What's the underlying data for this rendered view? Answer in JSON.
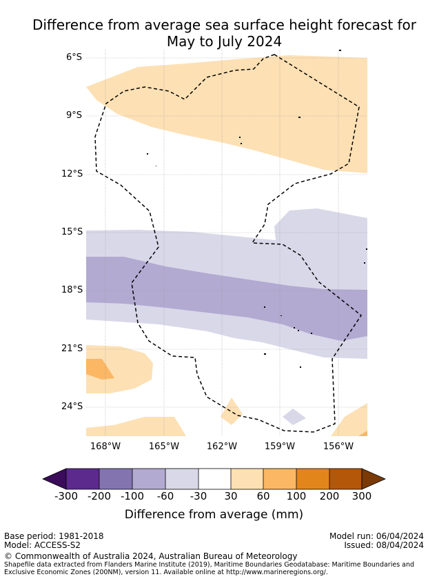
{
  "title_line1": "Difference from average sea surface height forecast for",
  "title_line2": "May to July 2024",
  "y_ticks": [
    "6°S",
    "9°S",
    "12°S",
    "15°S",
    "18°S",
    "21°S",
    "24°S"
  ],
  "x_ticks": [
    "168°W",
    "165°W",
    "162°W",
    "159°W",
    "156°W"
  ],
  "colorbar": {
    "labels": [
      "-300",
      "-200",
      "-100",
      "-60",
      "-30",
      "30",
      "60",
      "100",
      "200",
      "300"
    ],
    "colors": [
      "#3a0c5a",
      "#5b2a8c",
      "#8374b0",
      "#b2aad1",
      "#d9d8e9",
      "#ffffff",
      "#fde0b4",
      "#fbb763",
      "#e2861c",
      "#b45709",
      "#7a3a08"
    ],
    "title": "Difference from average (mm)"
  },
  "footer": {
    "base_period": "Base period: 1981-2018",
    "model": "Model: ACCESS-S2",
    "model_run": "Model run: 06/04/2024",
    "issued": "Issued: 08/04/2024",
    "copyright": "© Commonwealth of Australia 2024, Australian Bureau of Meteorology",
    "source_line1": "Shapefile data extracted from Flanders Marine Institute (2019), Maritime Boundaries Geodatabase: Maritime Boundaries and",
    "source_line2": "Exclusive Economic Zones (200NM), version 11. Available online at http://www.marineregions.org/."
  }
}
